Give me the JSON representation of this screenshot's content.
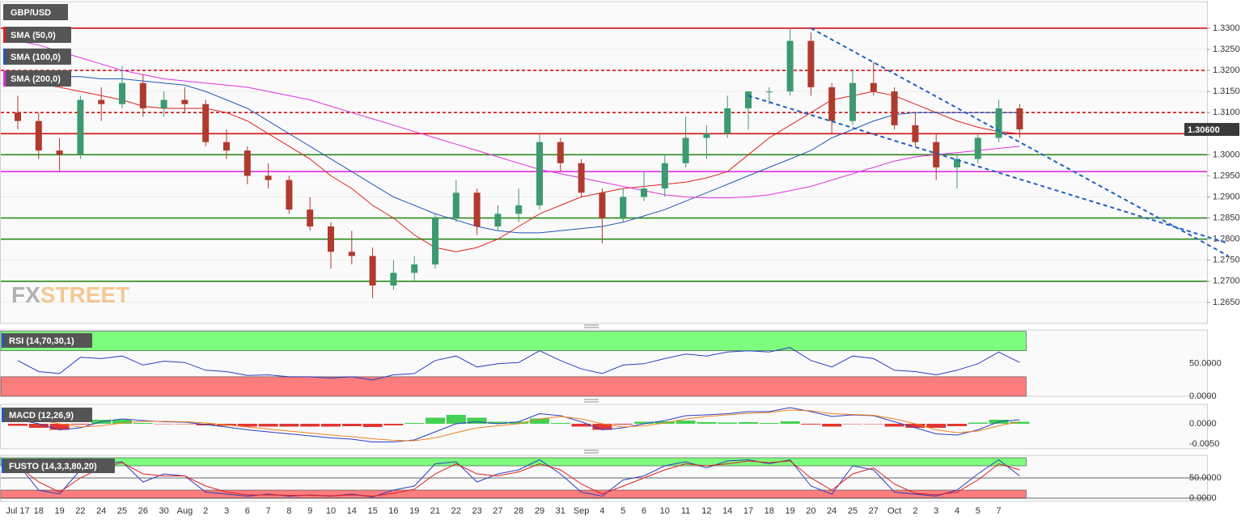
{
  "chart_data": [
    {
      "type": "candlestick",
      "instrument": "GBP/USD",
      "categories": [
        "Jul 17",
        "18",
        "19",
        "22",
        "24",
        "25",
        "26",
        "30",
        "Aug",
        "2",
        "3",
        "6",
        "7",
        "8",
        "9",
        "10",
        "14",
        "15",
        "16",
        "19",
        "21",
        "22",
        "23",
        "27",
        "28",
        "29",
        "31",
        "Sep",
        "4",
        "5",
        "6",
        "10",
        "11",
        "12",
        "14",
        "17",
        "18",
        "19",
        "20",
        "24",
        "25",
        "27",
        "Oct",
        "2",
        "3",
        "4",
        "5",
        "7",
        null
      ],
      "candles": [
        [
          1.31,
          1.314,
          1.306,
          1.308
        ],
        [
          1.308,
          1.31,
          1.299,
          1.301
        ],
        [
          1.301,
          1.304,
          1.296,
          1.3
        ],
        [
          1.3,
          1.314,
          1.299,
          1.313
        ],
        [
          1.313,
          1.316,
          1.308,
          1.312
        ],
        [
          1.312,
          1.321,
          1.311,
          1.317
        ],
        [
          1.317,
          1.319,
          1.309,
          1.311
        ],
        [
          1.311,
          1.315,
          1.309,
          1.313
        ],
        [
          1.313,
          1.316,
          1.31,
          1.312
        ],
        [
          1.312,
          1.313,
          1.302,
          1.303
        ],
        [
          1.303,
          1.306,
          1.299,
          1.301
        ],
        [
          1.301,
          1.302,
          1.293,
          1.295
        ],
        [
          1.295,
          1.298,
          1.292,
          1.294
        ],
        [
          1.294,
          1.295,
          1.286,
          1.287
        ],
        [
          1.287,
          1.29,
          1.282,
          1.283
        ],
        [
          1.283,
          1.284,
          1.273,
          1.277
        ],
        [
          1.277,
          1.282,
          1.274,
          1.276
        ],
        [
          1.276,
          1.278,
          1.266,
          1.269
        ],
        [
          1.269,
          1.275,
          1.268,
          1.272
        ],
        [
          1.272,
          1.276,
          1.27,
          1.274
        ],
        [
          1.274,
          1.286,
          1.273,
          1.285
        ],
        [
          1.285,
          1.294,
          1.284,
          1.291
        ],
        [
          1.291,
          1.292,
          1.281,
          1.283
        ],
        [
          1.283,
          1.288,
          1.282,
          1.286
        ],
        [
          1.286,
          1.292,
          1.284,
          1.288
        ],
        [
          1.288,
          1.305,
          1.287,
          1.303
        ],
        [
          1.303,
          1.304,
          1.296,
          1.298
        ],
        [
          1.298,
          1.299,
          1.29,
          1.291
        ],
        [
          1.291,
          1.292,
          1.279,
          1.285
        ],
        [
          1.285,
          1.292,
          1.284,
          1.29
        ],
        [
          1.29,
          1.296,
          1.289,
          1.292
        ],
        [
          1.292,
          1.3,
          1.29,
          1.298
        ],
        [
          1.298,
          1.309,
          1.297,
          1.304
        ],
        [
          1.304,
          1.307,
          1.299,
          1.305
        ],
        [
          1.305,
          1.314,
          1.304,
          1.311
        ],
        [
          1.311,
          1.315,
          1.306,
          1.315
        ],
        [
          1.315,
          1.316,
          1.312,
          1.315
        ],
        [
          1.315,
          1.33,
          1.314,
          1.327
        ],
        [
          1.327,
          1.329,
          1.314,
          1.316
        ],
        [
          1.316,
          1.317,
          1.305,
          1.308
        ],
        [
          1.308,
          1.32,
          1.307,
          1.317
        ],
        [
          1.317,
          1.322,
          1.314,
          1.315
        ],
        [
          1.315,
          1.316,
          1.306,
          1.307
        ],
        [
          1.307,
          1.31,
          1.302,
          1.303
        ],
        [
          1.303,
          1.305,
          1.294,
          1.297
        ],
        [
          1.297,
          1.3,
          1.292,
          1.299
        ],
        [
          1.299,
          1.305,
          1.298,
          1.304
        ],
        [
          1.304,
          1.313,
          1.303,
          1.311
        ],
        [
          1.311,
          1.312,
          1.304,
          1.306
        ]
      ],
      "up_color": "#3d9970",
      "down_color": "#b03a2e",
      "series": [
        {
          "name": "SMA (50,0)",
          "color": "#e02020",
          "values": [
            1.318,
            1.317,
            1.316,
            1.315,
            1.314,
            1.313,
            1.3115,
            1.311,
            1.311,
            1.311,
            1.31,
            1.308,
            1.305,
            1.302,
            1.299,
            1.295,
            1.292,
            1.288,
            1.285,
            1.281,
            1.278,
            1.277,
            1.278,
            1.28,
            1.283,
            1.286,
            1.288,
            1.29,
            1.291,
            1.292,
            1.2925,
            1.293,
            1.2935,
            1.2945,
            1.296,
            1.3,
            1.304,
            1.307,
            1.31,
            1.313,
            1.314,
            1.315,
            1.314,
            1.312,
            1.31,
            1.308,
            1.3065,
            1.3055,
            1.305
          ]
        },
        {
          "name": "SMA (100,0)",
          "color": "#2457b8",
          "values": [
            1.318,
            1.3185,
            1.3185,
            1.3185,
            1.318,
            1.318,
            1.3175,
            1.317,
            1.3165,
            1.315,
            1.313,
            1.311,
            1.308,
            1.305,
            1.302,
            1.299,
            1.296,
            1.293,
            1.29,
            1.288,
            1.286,
            1.2845,
            1.283,
            1.282,
            1.2815,
            1.2815,
            1.282,
            1.2825,
            1.283,
            1.284,
            1.2855,
            1.287,
            1.289,
            1.291,
            1.293,
            1.295,
            1.297,
            1.299,
            1.301,
            1.304,
            1.306,
            1.308,
            1.3095,
            1.31,
            1.31,
            1.31,
            1.31,
            1.31,
            1.31
          ]
        },
        {
          "name": "SMA (200,0)",
          "color": "#e030e0",
          "values": [
            1.327,
            1.326,
            1.3245,
            1.323,
            1.3215,
            1.32,
            1.319,
            1.318,
            1.3175,
            1.317,
            1.3165,
            1.316,
            1.315,
            1.314,
            1.313,
            1.3115,
            1.31,
            1.3085,
            1.307,
            1.3055,
            1.304,
            1.3025,
            1.301,
            1.2995,
            1.298,
            1.2965,
            1.2955,
            1.2945,
            1.2935,
            1.2925,
            1.2915,
            1.2905,
            1.29,
            1.2898,
            1.2898,
            1.29,
            1.2905,
            1.2915,
            1.2925,
            1.294,
            1.2955,
            1.297,
            1.2985,
            1.2995,
            1.3,
            1.3005,
            1.301,
            1.3015,
            1.302
          ]
        }
      ],
      "levels": [
        {
          "value": 1.33,
          "color": "#d01010",
          "style": "solid"
        },
        {
          "value": 1.32,
          "color": "#d01010",
          "style": "dashed"
        },
        {
          "value": 1.31,
          "color": "#d01010",
          "style": "dashed"
        },
        {
          "value": 1.305,
          "color": "#d01010",
          "style": "solid"
        },
        {
          "value": 1.3,
          "color": "#2a8a1a",
          "style": "solid"
        },
        {
          "value": 1.296,
          "color": "#e030e0",
          "style": "solid"
        },
        {
          "value": 1.285,
          "color": "#2a8a1a",
          "style": "solid"
        },
        {
          "value": 1.28,
          "color": "#2a8a1a",
          "style": "solid"
        },
        {
          "value": 1.27,
          "color": "#2a8a1a",
          "style": "solid"
        }
      ],
      "trendlines": [
        {
          "start": [
            38,
            1.33
          ],
          "end": [
            58,
            1.276
          ],
          "color": "#2060c0"
        },
        {
          "start": [
            35,
            1.314
          ],
          "end": [
            58,
            1.279
          ],
          "color": "#2060c0"
        }
      ],
      "last_price": {
        "value": 1.306,
        "label": "1.30600"
      },
      "logo": {
        "fx": "FX",
        "street": "STREET"
      },
      "ylim": [
        1.26,
        1.3363
      ],
      "yticks": [
        {
          "value": 1.265,
          "label": "1.2650"
        },
        {
          "value": 1.27,
          "label": "1.2700"
        },
        {
          "value": 1.275,
          "label": "1.2750"
        },
        {
          "value": 1.28,
          "label": "1.2800"
        },
        {
          "value": 1.285,
          "label": "1.2850"
        },
        {
          "value": 1.29,
          "label": "1.2900"
        },
        {
          "value": 1.295,
          "label": "1.2950"
        },
        {
          "value": 1.3,
          "label": "1.3000"
        },
        {
          "value": 1.305,
          "label": "1.3050"
        },
        {
          "value": 1.31,
          "label": "1.3100"
        },
        {
          "value": 1.315,
          "label": "1.3150"
        },
        {
          "value": 1.32,
          "label": "1.3200"
        },
        {
          "value": 1.325,
          "label": "1.3250"
        },
        {
          "value": 1.33,
          "label": "1.3300"
        }
      ],
      "grid": true
    },
    {
      "type": "line",
      "title": "RSI (14,70,30,1)",
      "series": [
        {
          "name": null,
          "color": "#2a3fc0",
          "values": [
            55,
            38,
            35,
            60,
            58,
            62,
            48,
            54,
            52,
            40,
            38,
            32,
            33,
            30,
            30,
            28,
            30,
            25,
            33,
            35,
            55,
            62,
            45,
            50,
            52,
            70,
            55,
            42,
            35,
            48,
            50,
            58,
            65,
            62,
            68,
            70,
            68,
            75,
            55,
            45,
            62,
            58,
            40,
            38,
            33,
            40,
            50,
            68,
            52
          ]
        }
      ],
      "zones": [
        {
          "from": 70,
          "to": 100,
          "color": "#7dfc7d"
        },
        {
          "from": 0,
          "to": 30,
          "color": "#fc7d7d"
        }
      ],
      "ylim": [
        0,
        102
      ],
      "yticks": [
        {
          "value": 50,
          "label": "50.0000"
        },
        {
          "value": 0,
          "label": "0.0000"
        }
      ],
      "grid": false
    },
    {
      "type": "combo",
      "title": "MACD (12,26,9)",
      "series": [
        {
          "name": null,
          "color": "#2a3fc0",
          "values": [
            0.001,
            0.0,
            -0.0015,
            -0.001,
            0.0005,
            0.0012,
            0.0008,
            0.0005,
            0.0004,
            -0.0002,
            -0.0008,
            -0.0015,
            -0.002,
            -0.0025,
            -0.003,
            -0.0035,
            -0.0038,
            -0.0045,
            -0.0045,
            -0.004,
            -0.002,
            0.0,
            0.0005,
            0.0,
            0.0005,
            0.0025,
            0.002,
            0.0005,
            -0.0015,
            -0.001,
            0.0,
            0.0008,
            0.002,
            0.0022,
            0.0025,
            0.003,
            0.003,
            0.004,
            0.003,
            0.0018,
            0.0022,
            0.002,
            0.0005,
            -0.001,
            -0.0025,
            -0.0028,
            -0.0015,
            0.0005,
            0.001
          ]
        },
        {
          "name": null,
          "color": "#f08020",
          "values": [
            0.0015,
            0.001,
            0.0,
            -0.0008,
            -0.0005,
            0.0002,
            0.0006,
            0.0006,
            0.0005,
            0.0002,
            -0.0003,
            -0.0008,
            -0.0013,
            -0.0018,
            -0.0023,
            -0.0028,
            -0.0032,
            -0.0037,
            -0.0041,
            -0.0042,
            -0.0035,
            -0.0022,
            -0.001,
            -0.0005,
            0.0,
            0.0012,
            0.0018,
            0.0012,
            0.0,
            -0.0008,
            -0.0005,
            0.0002,
            0.0012,
            0.0018,
            0.0022,
            0.0026,
            0.0028,
            0.0034,
            0.0032,
            0.0025,
            0.0023,
            0.0021,
            0.0012,
            0.0,
            -0.0015,
            -0.0022,
            -0.0018,
            -0.0005,
            0.0005
          ]
        }
      ],
      "histogram": [
        -0.0005,
        -0.001,
        -0.0015,
        -0.0002,
        0.001,
        0.001,
        0.0002,
        -0.0001,
        -0.0001,
        -0.0004,
        -0.0005,
        -0.0007,
        -0.0007,
        -0.0007,
        -0.0007,
        -0.0007,
        -0.0006,
        -0.0008,
        -0.0004,
        0.0002,
        0.0015,
        0.0022,
        0.0015,
        0.0005,
        0.0005,
        0.0013,
        0.0002,
        -0.0007,
        -0.0015,
        -0.0002,
        0.0005,
        0.0006,
        0.0008,
        0.0004,
        0.0003,
        0.0004,
        0.0002,
        0.0006,
        -0.0002,
        -0.0007,
        -0.0001,
        -0.0001,
        -0.0007,
        -0.001,
        -0.001,
        -0.0006,
        0.0003,
        0.001,
        0.0005
      ],
      "hist_colors": {
        "up": "#2ecc40",
        "down": "#e0201b"
      },
      "ylim": [
        -0.0062,
        0.0048
      ],
      "yticks": [
        {
          "value": 0,
          "label": "0.0000"
        },
        {
          "value": -0.005,
          "label": "-0.0050"
        }
      ],
      "grid": false
    },
    {
      "type": "line",
      "title": "FUSTO (14,3,3,80,20)",
      "series": [
        {
          "name": null,
          "color": "#2a3fc0",
          "values": [
            85,
            20,
            10,
            70,
            85,
            90,
            40,
            60,
            55,
            15,
            10,
            5,
            10,
            5,
            8,
            5,
            10,
            3,
            20,
            30,
            85,
            90,
            40,
            60,
            70,
            95,
            60,
            15,
            5,
            45,
            55,
            80,
            90,
            75,
            92,
            95,
            85,
            95,
            30,
            10,
            80,
            70,
            15,
            10,
            5,
            20,
            60,
            95,
            55
          ]
        },
        {
          "name": null,
          "color": "#e02020",
          "values": [
            80,
            40,
            15,
            50,
            75,
            88,
            60,
            55,
            55,
            30,
            15,
            8,
            8,
            7,
            7,
            6,
            8,
            5,
            12,
            22,
            60,
            85,
            60,
            55,
            65,
            85,
            70,
            35,
            10,
            30,
            50,
            70,
            85,
            80,
            85,
            92,
            88,
            92,
            50,
            20,
            60,
            75,
            35,
            12,
            8,
            15,
            45,
            85,
            70
          ]
        }
      ],
      "zones": [
        {
          "from": 80,
          "to": 100,
          "color": "#7dfc7d"
        },
        {
          "from": 0,
          "to": 20,
          "color": "#fc7d7d"
        }
      ],
      "ylim": [
        -8,
        106
      ],
      "yticks": [
        {
          "value": 50,
          "label": "50.0000"
        },
        {
          "value": 0,
          "label": "0.0000"
        }
      ],
      "grid": true
    }
  ]
}
